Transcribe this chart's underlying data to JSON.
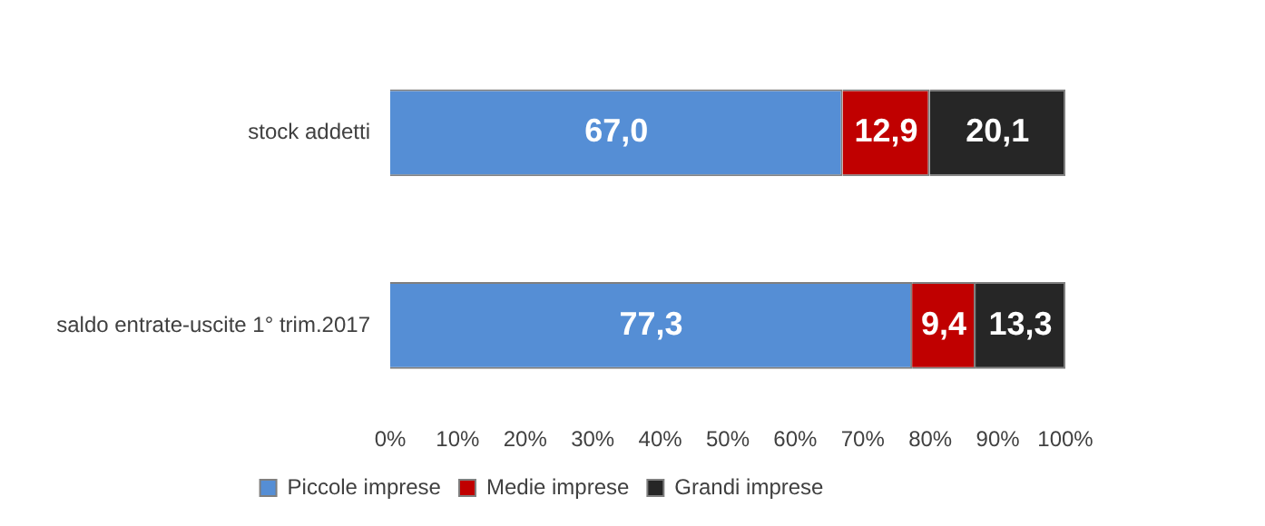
{
  "chart_data": {
    "type": "bar",
    "orientation": "horizontal",
    "stacked": true,
    "categories": [
      "stock addetti",
      "saldo entrate-uscite 1° trim.2017"
    ],
    "series": [
      {
        "name": "Piccole imprese",
        "color": "#558ed5",
        "values": [
          67.0,
          77.3
        ],
        "value_labels": [
          "67,0",
          "77,3"
        ]
      },
      {
        "name": "Medie imprese",
        "color": "#c00000",
        "values": [
          12.9,
          9.4
        ],
        "value_labels": [
          "12,9",
          "9,4"
        ]
      },
      {
        "name": "Grandi imprese",
        "color": "#262626",
        "values": [
          20.1,
          13.3
        ],
        "value_labels": [
          "20,1",
          "13,3"
        ]
      }
    ],
    "xlim": [
      0,
      100
    ],
    "xticks": [
      {
        "value": 0,
        "label": "0%"
      },
      {
        "value": 10,
        "label": "10%"
      },
      {
        "value": 20,
        "label": "20%"
      },
      {
        "value": 30,
        "label": "30%"
      },
      {
        "value": 40,
        "label": "40%"
      },
      {
        "value": 50,
        "label": "50%"
      },
      {
        "value": 60,
        "label": "60%"
      },
      {
        "value": 70,
        "label": "70%"
      },
      {
        "value": 80,
        "label": "80%"
      },
      {
        "value": 90,
        "label": "90%"
      },
      {
        "value": 100,
        "label": "100%"
      }
    ],
    "grid": false,
    "legend": "bottom"
  }
}
